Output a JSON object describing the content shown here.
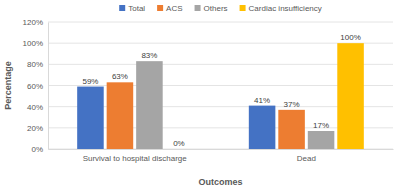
{
  "chart_data": {
    "type": "bar",
    "x_label": "Outcomes",
    "y_label": "Percentage",
    "categories": [
      "Survival to hospital discharge",
      "Dead"
    ],
    "series": [
      {
        "name": "Total",
        "color": "#4472c4",
        "values": [
          59,
          41
        ],
        "value_labels": [
          "59%",
          "41%"
        ]
      },
      {
        "name": "ACS",
        "color": "#ed7d31",
        "values": [
          63,
          37
        ],
        "value_labels": [
          "63%",
          "37%"
        ]
      },
      {
        "name": "Others",
        "color": "#a5a5a5",
        "values": [
          83,
          17
        ],
        "value_labels": [
          "83%",
          "17%"
        ]
      },
      {
        "name": "Cardiac insufficiency",
        "color": "#ffc000",
        "values": [
          0,
          100
        ],
        "value_labels": [
          "0%",
          "100%"
        ]
      }
    ],
    "ylim": [
      0,
      120
    ],
    "yticks": [
      {
        "value": 0,
        "label": "0%"
      },
      {
        "value": 20,
        "label": "20%"
      },
      {
        "value": 40,
        "label": "40%"
      },
      {
        "value": 60,
        "label": "60%"
      },
      {
        "value": 80,
        "label": "80%"
      },
      {
        "value": 100,
        "label": "100%"
      },
      {
        "value": 120,
        "label": "120%"
      }
    ],
    "grid": true,
    "legend": "top",
    "data_labels": true
  }
}
